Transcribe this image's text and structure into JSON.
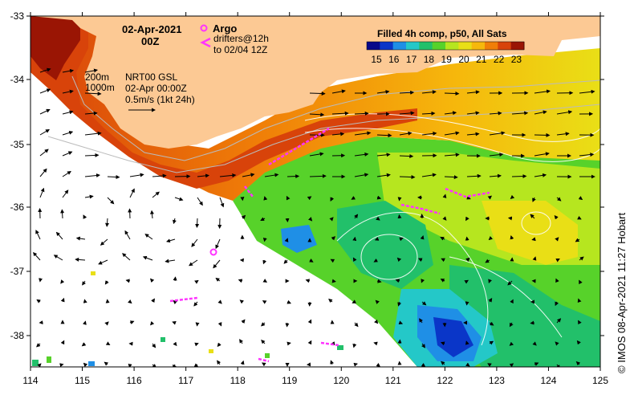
{
  "header": {
    "date": "02-Apr-2021",
    "hour": "00Z"
  },
  "legend": {
    "argo_label": "Argo",
    "drifters_label": "drifters@12h",
    "drifters_to": "to 02/04 12Z",
    "argo_color": "#ff33ff",
    "drifter_color": "#ff33ff"
  },
  "contours_key": {
    "line1": "200m",
    "line2": "1000m"
  },
  "current_info": {
    "model": "NRT00 GSL",
    "time": "02-Apr 00:00Z",
    "scale": "0.5m/s (1kt 24h)"
  },
  "colorbar": {
    "title": "Filled 4h comp, p50, All Sats",
    "ticks": [
      "15",
      "16",
      "17",
      "18",
      "19",
      "20",
      "21",
      "22",
      "23"
    ],
    "colors": [
      "#08088a",
      "#0a36c8",
      "#1f8fe6",
      "#24c8c8",
      "#22c06a",
      "#57d22a",
      "#b6e61f",
      "#e9df16",
      "#f6b80c",
      "#f07e08",
      "#d8430a",
      "#9a1504"
    ]
  },
  "axes": {
    "x_ticks": [
      "114",
      "115",
      "116",
      "117",
      "118",
      "119",
      "120",
      "121",
      "122",
      "123",
      "124",
      "125"
    ],
    "y_ticks": [
      "-33",
      "-34",
      "-35",
      "-36",
      "-37",
      "-38"
    ]
  },
  "credit": "© IMOS 08-Apr-2021 11:27 Hobart",
  "colors": {
    "land": "#fcc994",
    "frame": "#000000"
  }
}
